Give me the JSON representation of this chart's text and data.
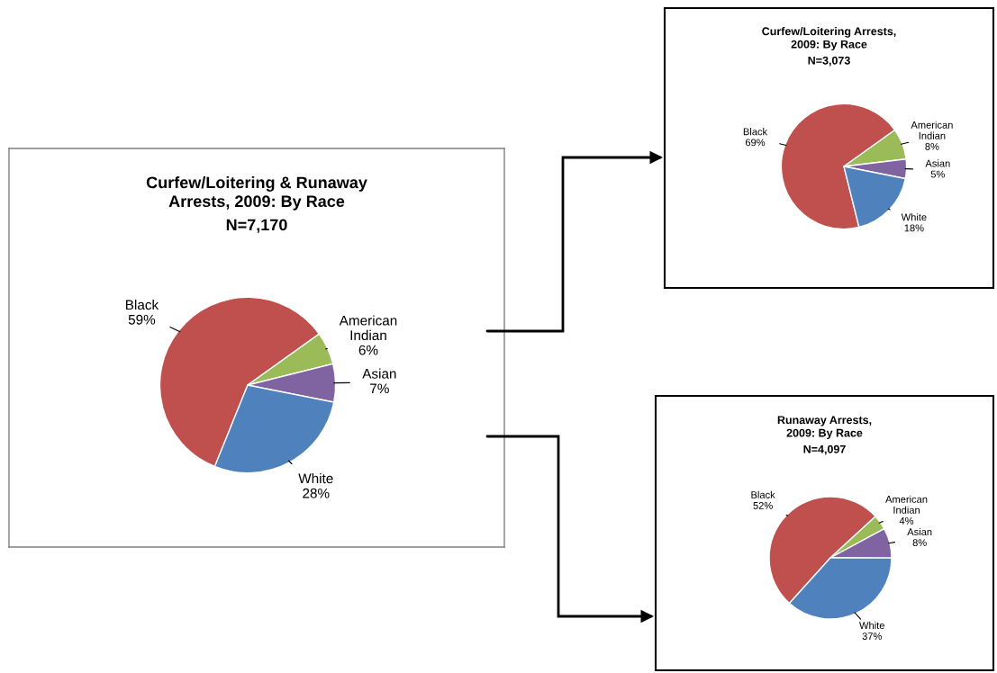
{
  "chart_data": [
    {
      "type": "pie",
      "title": "Curfew/Loitering & Runaway\nArrests, 2009: By Race",
      "subtitle": "N=7,170",
      "categories": [
        "Black",
        "American Indian",
        "Asian",
        "White"
      ],
      "values": [
        59,
        6,
        7,
        28
      ],
      "value_labels": [
        "59%",
        "6%",
        "7%",
        "28%"
      ],
      "colors": [
        "#c0504d",
        "#9bbb59",
        "#8064a2",
        "#4f81bd"
      ]
    },
    {
      "type": "pie",
      "title": "Curfew/Loitering Arrests,\n2009: By Race",
      "subtitle": "N=3,073",
      "categories": [
        "Black",
        "American Indian",
        "Asian",
        "White"
      ],
      "values": [
        69,
        8,
        5,
        18
      ],
      "value_labels": [
        "69%",
        "8%",
        "5%",
        "18%"
      ],
      "colors": [
        "#c0504d",
        "#9bbb59",
        "#8064a2",
        "#4f81bd"
      ]
    },
    {
      "type": "pie",
      "title": "Runaway Arrests,\n2009: By Race",
      "subtitle": "N=4,097",
      "categories": [
        "Black",
        "American Indian",
        "Asian",
        "White"
      ],
      "values": [
        52,
        4,
        8,
        37
      ],
      "value_labels": [
        "52%",
        "4%",
        "8%",
        "37%"
      ],
      "colors": [
        "#c0504d",
        "#9bbb59",
        "#8064a2",
        "#4f81bd"
      ]
    }
  ]
}
